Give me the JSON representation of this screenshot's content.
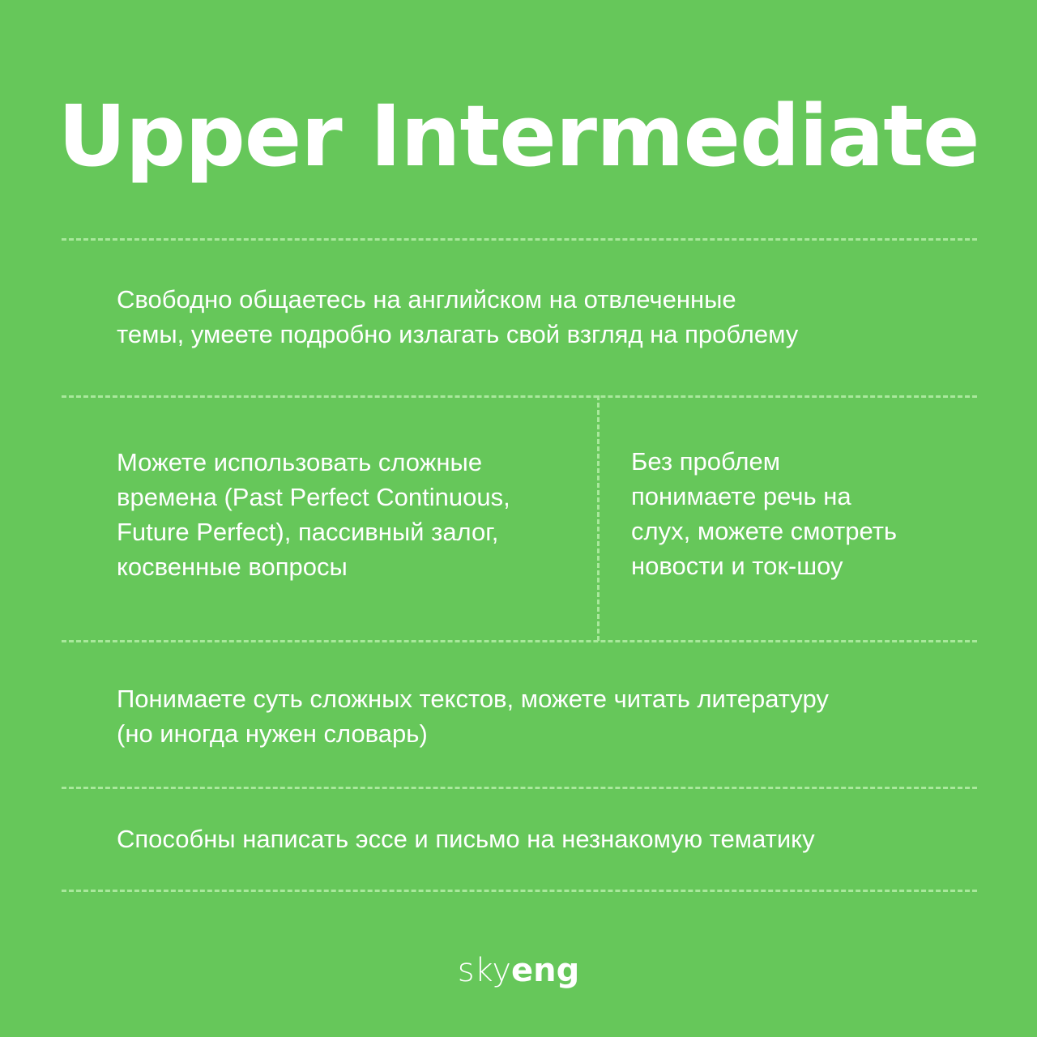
{
  "title": "Upper Intermediate",
  "blocks": {
    "b1": "Свободно общаетесь на английском на отвлеченные\nтемы, умеете подробно излагать свой взгляд на проблему",
    "b2": "Можете использовать сложные\nвремена (Past Perfect Continuous,\nFuture Perfect), пассивный залог,\nкосвенные вопросы",
    "b3": "Без проблем\nпонимаете речь на\nслух, можете смотреть\nновости и ток-шоу",
    "b4": "Понимаете суть сложных текстов, можете читать литературу\n(но иногда нужен словарь)",
    "b5": "Способны написать эссе и письмо на незнакомую тематику"
  },
  "logo": {
    "part1": "sky",
    "part2": "eng"
  },
  "colors": {
    "background": "#66c75a",
    "divider": "#a9e89c",
    "text": "#ffffff"
  }
}
